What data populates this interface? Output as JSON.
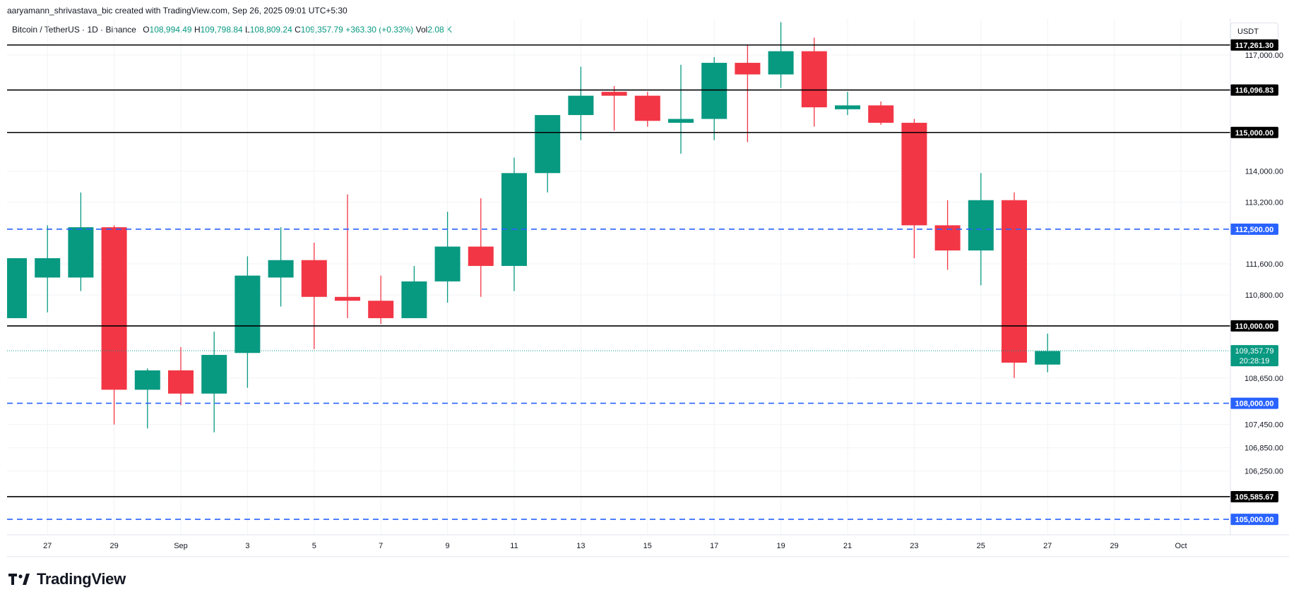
{
  "credit": "aaryamann_shrivastava_bic created with TradingView.com, Sep 26, 2025 09:01 UTC+5:30",
  "header": {
    "symbol": "Bitcoin / TetherUS · 1D · Binance",
    "o_label": "O",
    "o_value": "108,994.49",
    "h_label": "H",
    "h_value": "109,798.84",
    "l_label": "L",
    "l_value": "108,809.24",
    "c_label": "C",
    "c_value": "109,357.79",
    "change": "+363.30 (+0.33%)",
    "vol_label": "Vol",
    "vol_value": "2.08 K"
  },
  "currency": "USDT",
  "logo_text": "TradingView",
  "colors": {
    "up": "#089981",
    "down": "#f23645",
    "solid_level": "#000000",
    "dashed_level": "#2962ff",
    "grid": "#f2f3f5",
    "text": "#131722"
  },
  "chart_data": {
    "type": "candlestick",
    "ylim": [
      104600,
      117950
    ],
    "x_ticks": [
      "27",
      "29",
      "Sep",
      "3",
      "5",
      "7",
      "9",
      "11",
      "13",
      "15",
      "17",
      "19",
      "21",
      "23",
      "25",
      "27",
      "29",
      "Oct"
    ],
    "y_ticks": [
      "117,000.00",
      "114,000.00",
      "113,200.00",
      "111,600.00",
      "110,800.00",
      "108,650.00",
      "107,450.00",
      "106,850.00",
      "106,250.00"
    ],
    "candles": [
      {
        "date": "Aug 26",
        "open": 110200,
        "high": 111750,
        "low": 110200,
        "close": 111750
      },
      {
        "date": "Aug 27",
        "open": 111250,
        "high": 112600,
        "low": 110350,
        "close": 111750
      },
      {
        "date": "Aug 28",
        "open": 111250,
        "high": 113450,
        "low": 110900,
        "close": 112550
      },
      {
        "date": "Aug 29",
        "open": 112550,
        "high": 112600,
        "low": 107450,
        "close": 108350
      },
      {
        "date": "Aug 30",
        "open": 108350,
        "high": 108900,
        "low": 107350,
        "close": 108850
      },
      {
        "date": "Aug 31",
        "open": 108850,
        "high": 109450,
        "low": 107950,
        "close": 108250
      },
      {
        "date": "Sep 1",
        "open": 108250,
        "high": 109850,
        "low": 107250,
        "close": 109250
      },
      {
        "date": "Sep 2",
        "open": 109300,
        "high": 111800,
        "low": 108400,
        "close": 111300
      },
      {
        "date": "Sep 3",
        "open": 111250,
        "high": 112550,
        "low": 110500,
        "close": 111700
      },
      {
        "date": "Sep 4",
        "open": 111700,
        "high": 112150,
        "low": 109400,
        "close": 110750
      },
      {
        "date": "Sep 5",
        "open": 110750,
        "high": 113400,
        "low": 110200,
        "close": 110650
      },
      {
        "date": "Sep 6",
        "open": 110650,
        "high": 111300,
        "low": 110050,
        "close": 110200
      },
      {
        "date": "Sep 7",
        "open": 110200,
        "high": 111550,
        "low": 110200,
        "close": 111150
      },
      {
        "date": "Sep 8",
        "open": 111150,
        "high": 112950,
        "low": 110600,
        "close": 112050
      },
      {
        "date": "Sep 9",
        "open": 112050,
        "high": 113300,
        "low": 110750,
        "close": 111550
      },
      {
        "date": "Sep 10",
        "open": 111550,
        "high": 114350,
        "low": 110900,
        "close": 113950
      },
      {
        "date": "Sep 11",
        "open": 113950,
        "high": 115400,
        "low": 113450,
        "close": 115450
      },
      {
        "date": "Sep 12",
        "open": 115450,
        "high": 116700,
        "low": 114800,
        "close": 115950
      },
      {
        "date": "Sep 13",
        "open": 116050,
        "high": 116200,
        "low": 115050,
        "close": 115950
      },
      {
        "date": "Sep 14",
        "open": 115950,
        "high": 116050,
        "low": 115150,
        "close": 115300
      },
      {
        "date": "Sep 15",
        "open": 115250,
        "high": 116750,
        "low": 114450,
        "close": 115350
      },
      {
        "date": "Sep 16",
        "open": 115350,
        "high": 116950,
        "low": 114800,
        "close": 116800
      },
      {
        "date": "Sep 17",
        "open": 116800,
        "high": 117250,
        "low": 114750,
        "close": 116500
      },
      {
        "date": "Sep 18",
        "open": 116500,
        "high": 117850,
        "low": 116150,
        "close": 117100
      },
      {
        "date": "Sep 19",
        "open": 117100,
        "high": 117450,
        "low": 115150,
        "close": 115650
      },
      {
        "date": "Sep 20",
        "open": 115600,
        "high": 116050,
        "low": 115450,
        "close": 115700
      },
      {
        "date": "Sep 21",
        "open": 115700,
        "high": 115800,
        "low": 115200,
        "close": 115250
      },
      {
        "date": "Sep 22",
        "open": 115250,
        "high": 115350,
        "low": 111750,
        "close": 112600
      },
      {
        "date": "Sep 23",
        "open": 112600,
        "high": 113250,
        "low": 111450,
        "close": 111950
      },
      {
        "date": "Sep 24",
        "open": 111950,
        "high": 113950,
        "low": 111050,
        "close": 113250
      },
      {
        "date": "Sep 25",
        "open": 113250,
        "high": 113450,
        "low": 108650,
        "close": 109050
      },
      {
        "date": "Sep 26",
        "open": 109000,
        "high": 109800,
        "low": 108800,
        "close": 109350
      }
    ],
    "levels": [
      {
        "value": 117261.3,
        "label": "117,261.30",
        "style": "solid"
      },
      {
        "value": 116096.83,
        "label": "116,096.83",
        "style": "solid"
      },
      {
        "value": 115000.0,
        "label": "115,000.00",
        "style": "solid"
      },
      {
        "value": 112500.0,
        "label": "112,500.00",
        "style": "dashed"
      },
      {
        "value": 110000.0,
        "label": "110,000.00",
        "style": "solid"
      },
      {
        "value": 108000.0,
        "label": "108,000.00",
        "style": "dashed"
      },
      {
        "value": 105585.67,
        "label": "105,585.67",
        "style": "solid"
      },
      {
        "value": 105000.0,
        "label": "105,000.00",
        "style": "dashed"
      }
    ],
    "last_price": {
      "value": 109357.79,
      "label": "109,357.79",
      "countdown": "20:28:19"
    }
  }
}
